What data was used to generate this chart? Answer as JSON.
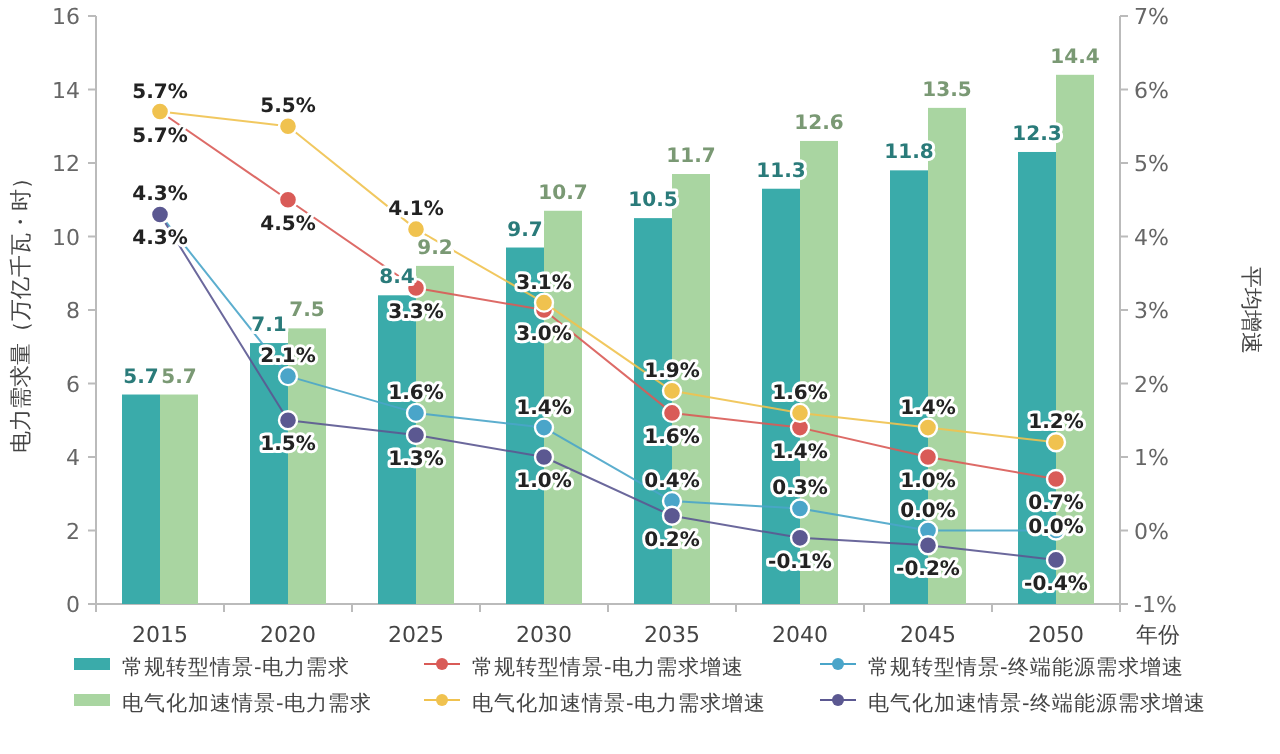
{
  "chart_data": {
    "type": "bar",
    "xlabel": "年份",
    "ylabel": "电力需求量（万亿千瓦・时）",
    "y2label": "平均增速",
    "categories": [
      "2015",
      "2020",
      "2025",
      "2030",
      "2035",
      "2040",
      "2045",
      "2050"
    ],
    "ylim": [
      0,
      16
    ],
    "yticks": [
      0,
      2,
      4,
      6,
      8,
      10,
      12,
      14,
      16
    ],
    "y2lim": [
      -1,
      7
    ],
    "y2ticks": [
      {
        "value": -1,
        "label": "-1%"
      },
      {
        "value": 0,
        "label": "0%"
      },
      {
        "value": 1,
        "label": "1%"
      },
      {
        "value": 2,
        "label": "2%"
      },
      {
        "value": 3,
        "label": "3%"
      },
      {
        "value": 4,
        "label": "4%"
      },
      {
        "value": 5,
        "label": "5%"
      },
      {
        "value": 6,
        "label": "6%"
      },
      {
        "value": 7,
        "label": "7%"
      }
    ],
    "legend": "bottom",
    "marker": "circle",
    "grid": false,
    "series": [
      {
        "name": "常规转型情景-电力需求",
        "color": "#3aabaa",
        "values": [
          5.7,
          7.1,
          8.4,
          9.7,
          10.5,
          11.3,
          11.8,
          12.3
        ],
        "value_labels": [
          "5.7",
          "7.1",
          "8.4",
          "9.7",
          "10.5",
          "11.3",
          "11.8",
          "12.3"
        ]
      },
      {
        "name": "电气化加速情景-电力需求",
        "color": "#a9d5a1",
        "values": [
          5.7,
          7.5,
          9.2,
          10.7,
          11.7,
          12.6,
          13.5,
          14.4
        ],
        "value_labels": [
          "5.7",
          "7.5",
          "9.2",
          "10.7",
          "11.7",
          "12.6",
          "13.5",
          "14.4"
        ]
      },
      {
        "name": "常规转型情景-电力需求增速",
        "type": "line",
        "axis": "y2",
        "color": "#d95b57",
        "values": [
          5.7,
          4.5,
          3.3,
          3.0,
          1.6,
          1.4,
          1.0,
          0.7
        ],
        "value_labels": [
          "5.7%",
          "4.5%",
          "3.3%",
          "3.0%",
          "1.6%",
          "1.4%",
          "1.0%",
          "0.7%"
        ]
      },
      {
        "name": "电气化加速情景-电力需求增速",
        "type": "line",
        "axis": "y2",
        "color": "#f0c24f",
        "values": [
          5.7,
          5.5,
          4.1,
          3.1,
          1.9,
          1.6,
          1.4,
          1.2
        ],
        "value_labels": [
          "5.7%",
          "5.5%",
          "4.1%",
          "3.1%",
          "1.9%",
          "1.6%",
          "1.4%",
          "1.2%"
        ]
      },
      {
        "name": "常规转型情景-终端能源需求增速",
        "type": "line",
        "axis": "y2",
        "color": "#4aa5c9",
        "values": [
          4.3,
          2.1,
          1.6,
          1.4,
          0.4,
          0.3,
          0.0,
          0.0
        ],
        "value_labels": [
          "4.3%",
          "2.1%",
          "1.6%",
          "1.4%",
          "0.4%",
          "0.3%",
          "0.0%",
          "0.0%"
        ]
      },
      {
        "name": "电气化加速情景-终端能源需求增速",
        "type": "line",
        "axis": "y2",
        "color": "#5b5891",
        "values": [
          4.3,
          1.5,
          1.3,
          1.0,
          0.2,
          -0.1,
          -0.2,
          -0.4
        ],
        "value_labels": [
          "4.3%",
          "1.5%",
          "1.3%",
          "1.0%",
          "0.2%",
          "-0.1%",
          "-0.2%",
          "-0.4%"
        ]
      }
    ]
  }
}
